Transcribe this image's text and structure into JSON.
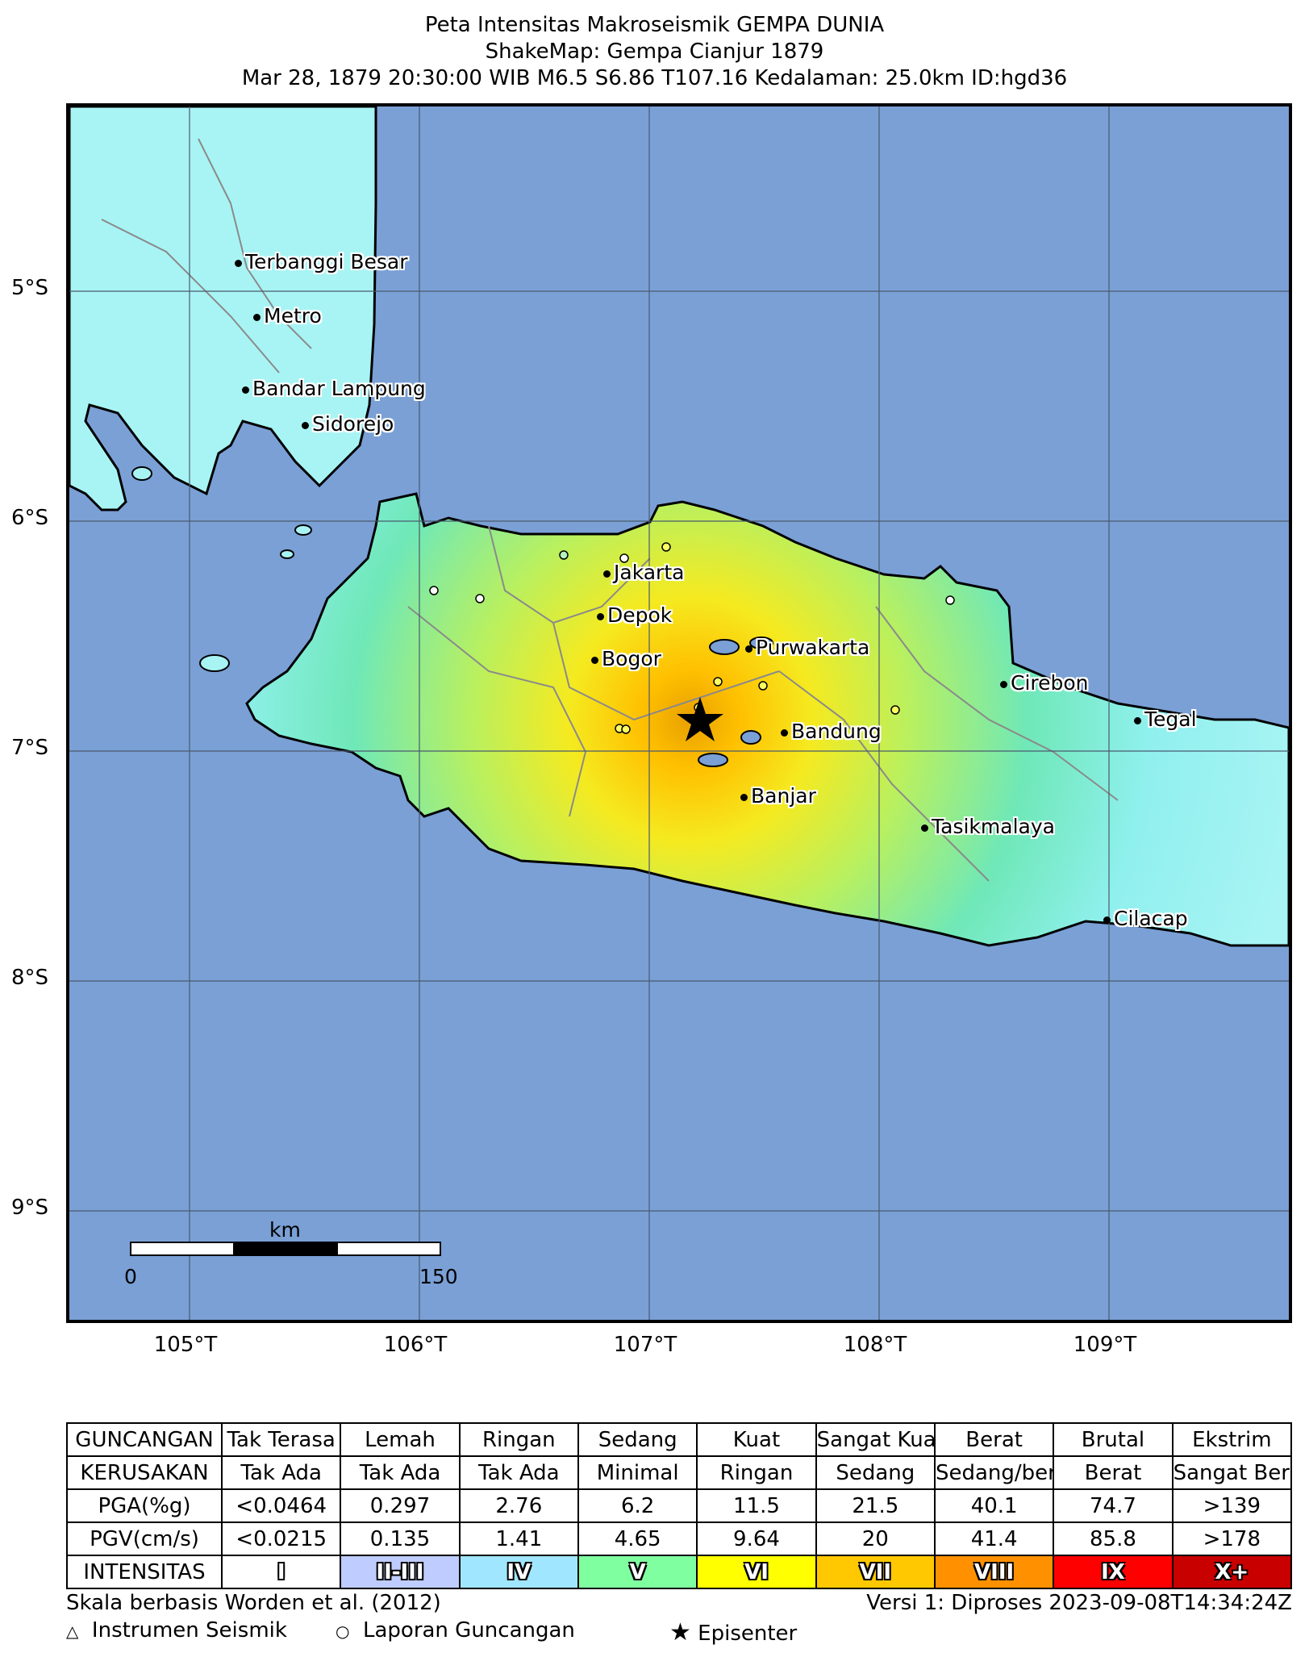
{
  "header": {
    "title": "Peta Intensitas Makroseismik GEMPA DUNIA",
    "subtitle": "ShakeMap: Gempa Cianjur 1879",
    "event_line": "Mar 28, 1879 20:30:00 WIB M6.5 S6.86 T107.16 Kedalaman: 25.0km ID:hgd36"
  },
  "map": {
    "lat_labels": [
      "5°S",
      "6°S",
      "7°S",
      "8°S",
      "9°S"
    ],
    "lon_labels": [
      "105°T",
      "106°T",
      "107°T",
      "108°T",
      "109°T"
    ],
    "ocean_color": "#7aa0d6",
    "scale_bar": {
      "unit": "km",
      "start": "0",
      "end": "150"
    },
    "cities": [
      {
        "name": "Terbanggi Besar"
      },
      {
        "name": "Metro"
      },
      {
        "name": "Bandar Lampung"
      },
      {
        "name": "Sidorejo"
      },
      {
        "name": "Jakarta"
      },
      {
        "name": "Depok"
      },
      {
        "name": "Bogor"
      },
      {
        "name": "Purwakarta"
      },
      {
        "name": "Bandung"
      },
      {
        "name": "Banjar"
      },
      {
        "name": "Cirebon"
      },
      {
        "name": "Tegal"
      },
      {
        "name": "Tasikmalaya"
      },
      {
        "name": "Cilacap"
      }
    ],
    "epicenter_icon": "star-icon"
  },
  "legend_table": {
    "rows": [
      {
        "head": "GUNCANGAN",
        "cells": [
          "Tak Terasa",
          "Lemah",
          "Ringan",
          "Sedang",
          "Kuat",
          "Sangat Kuat",
          "Berat",
          "Brutal",
          "Ekstrim"
        ]
      },
      {
        "head": "KERUSAKAN",
        "cells": [
          "Tak Ada",
          "Tak Ada",
          "Tak Ada",
          "Minimal",
          "Ringan",
          "Sedang",
          "Sedang/berat",
          "Berat",
          "Sangat Berat"
        ]
      },
      {
        "head": "PGA(%g)",
        "cells": [
          "<0.0464",
          "0.297",
          "2.76",
          "6.2",
          "11.5",
          "21.5",
          "40.1",
          "74.7",
          ">139"
        ]
      },
      {
        "head": "PGV(cm/s)",
        "cells": [
          "<0.0215",
          "0.135",
          "1.41",
          "4.65",
          "9.64",
          "20",
          "41.4",
          "85.8",
          ">178"
        ]
      }
    ],
    "intensity_head": "INTENSITAS",
    "intensity": [
      {
        "label": "I",
        "color": "#ffffff"
      },
      {
        "label": "II-III",
        "color": "#bfccff"
      },
      {
        "label": "IV",
        "color": "#a0e6ff"
      },
      {
        "label": "V",
        "color": "#80ffa0"
      },
      {
        "label": "VI",
        "color": "#ffff00"
      },
      {
        "label": "VII",
        "color": "#ffc800"
      },
      {
        "label": "VIII",
        "color": "#ff9100"
      },
      {
        "label": "IX",
        "color": "#ff0000"
      },
      {
        "label": "X+",
        "color": "#c80000"
      }
    ]
  },
  "footer": {
    "scale_note": "Skala berbasis Worden et al. (2012)",
    "version": "Versi 1: Diproses 2023-09-08T14:34:24Z",
    "legend_instrument": "Instrumen Seismik",
    "legend_report": "Laporan Guncangan",
    "legend_epicenter": "Episenter"
  }
}
